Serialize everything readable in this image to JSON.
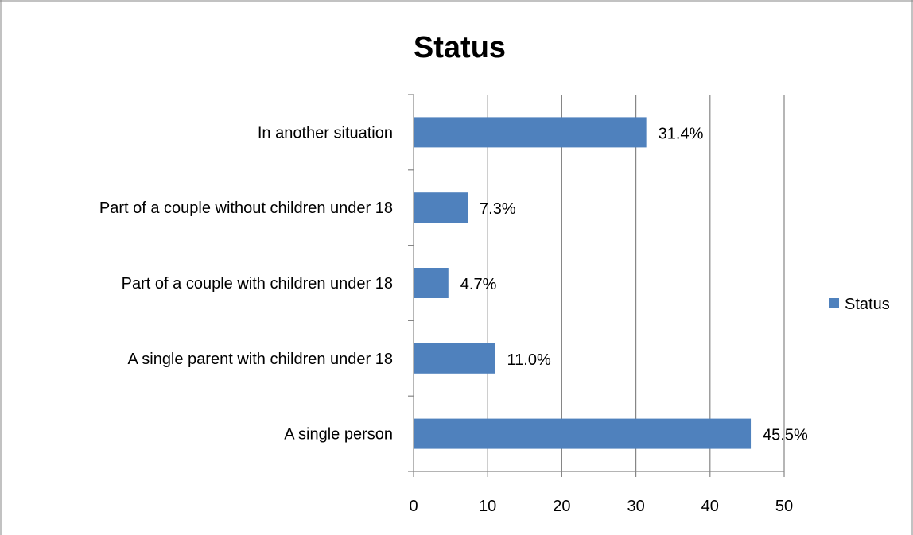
{
  "chart_data": {
    "type": "bar",
    "orientation": "horizontal",
    "title": "Status",
    "categories": [
      "A single person",
      "A single parent with children under 18",
      "Part of a couple with children under 18",
      "Part of a couple without children under 18",
      "In another situation"
    ],
    "series": [
      {
        "name": "Status",
        "values": [
          45.5,
          11.0,
          4.7,
          7.3,
          31.4
        ],
        "labels": [
          "45.5%",
          "11.0%",
          "4.7%",
          "7.3%",
          "31.4%"
        ]
      }
    ],
    "xlim": [
      0,
      50
    ],
    "xticks": [
      "0",
      "10",
      "20",
      "30",
      "40",
      "50"
    ],
    "grid": true,
    "legend_position": "right",
    "colors": {
      "bar": "#4f81bd",
      "grid": "#868686",
      "axis": "#868686",
      "frame": "#868686"
    }
  }
}
